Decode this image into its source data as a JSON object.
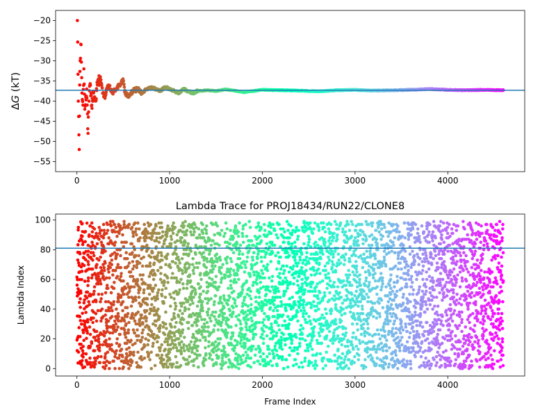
{
  "chart_data": [
    {
      "type": "scatter",
      "title": "",
      "xlabel": "",
      "ylabel": "ΔG (kT)",
      "ylabel_symbol": "Δ",
      "ylabel_var": "G",
      "ylabel_unit": " (kT)",
      "xlim": [
        -230,
        4830
      ],
      "ylim": [
        -57.5,
        -17.5
      ],
      "xticks": [
        0,
        1000,
        2000,
        3000,
        4000
      ],
      "yticks": [
        -55,
        -50,
        -45,
        -40,
        -35,
        -30,
        -25,
        -20
      ],
      "hline": -37.3,
      "hline_color": "#1f77b4",
      "colormap": "rainbow",
      "n_frames": 4600,
      "series": [
        {
          "x": [
            5,
            15,
            25,
            30,
            35,
            45,
            55,
            65,
            75,
            85,
            95,
            105,
            120,
            130,
            140,
            160,
            180,
            200,
            220,
            250,
            280,
            300,
            340,
            380,
            420,
            460,
            500,
            520,
            560,
            600,
            650,
            700,
            750,
            800,
            850,
            900,
            950,
            1000,
            1050,
            1100,
            1150,
            1200,
            1250,
            1300,
            1400,
            1500,
            1600,
            1700,
            1800,
            1900,
            2000,
            2200,
            2400,
            2600,
            2800,
            3000,
            3200,
            3400,
            3600,
            3800,
            4000,
            4200,
            4400,
            4600
          ],
          "y": [
            -20,
            -40,
            -52,
            -36,
            -30,
            -26,
            -38,
            -41,
            -32,
            -42,
            -39,
            -37,
            -48,
            -40,
            -36,
            -41,
            -38,
            -40,
            -36,
            -34,
            -38,
            -39,
            -36,
            -38,
            -37,
            -36,
            -35,
            -38,
            -39,
            -37.5,
            -37,
            -38,
            -37,
            -36.5,
            -37,
            -37.5,
            -36.5,
            -37,
            -37.5,
            -38,
            -37,
            -37.5,
            -38,
            -37.5,
            -37.3,
            -37.5,
            -37.1,
            -37.4,
            -37.8,
            -37.5,
            -37.2,
            -37.3,
            -37.4,
            -37.6,
            -37.3,
            -37.2,
            -37.4,
            -37.3,
            -37.2,
            -37.0,
            -37.2,
            -37.3,
            -37.2,
            -37.3
          ]
        }
      ]
    },
    {
      "type": "scatter",
      "title": "Lambda Trace for PROJ18434/RUN22/CLONE8",
      "xlabel": "Frame Index",
      "ylabel": "Lambda Index",
      "xlim": [
        -230,
        4830
      ],
      "ylim": [
        -5,
        104
      ],
      "xticks": [
        0,
        1000,
        2000,
        3000,
        4000
      ],
      "yticks": [
        0,
        20,
        40,
        60,
        80,
        100
      ],
      "hline": 81,
      "hline_color": "#1f77b4",
      "colormap": "rainbow",
      "n_frames": 4600,
      "n_points": 4600,
      "value_range": [
        0,
        99
      ],
      "series": []
    }
  ]
}
